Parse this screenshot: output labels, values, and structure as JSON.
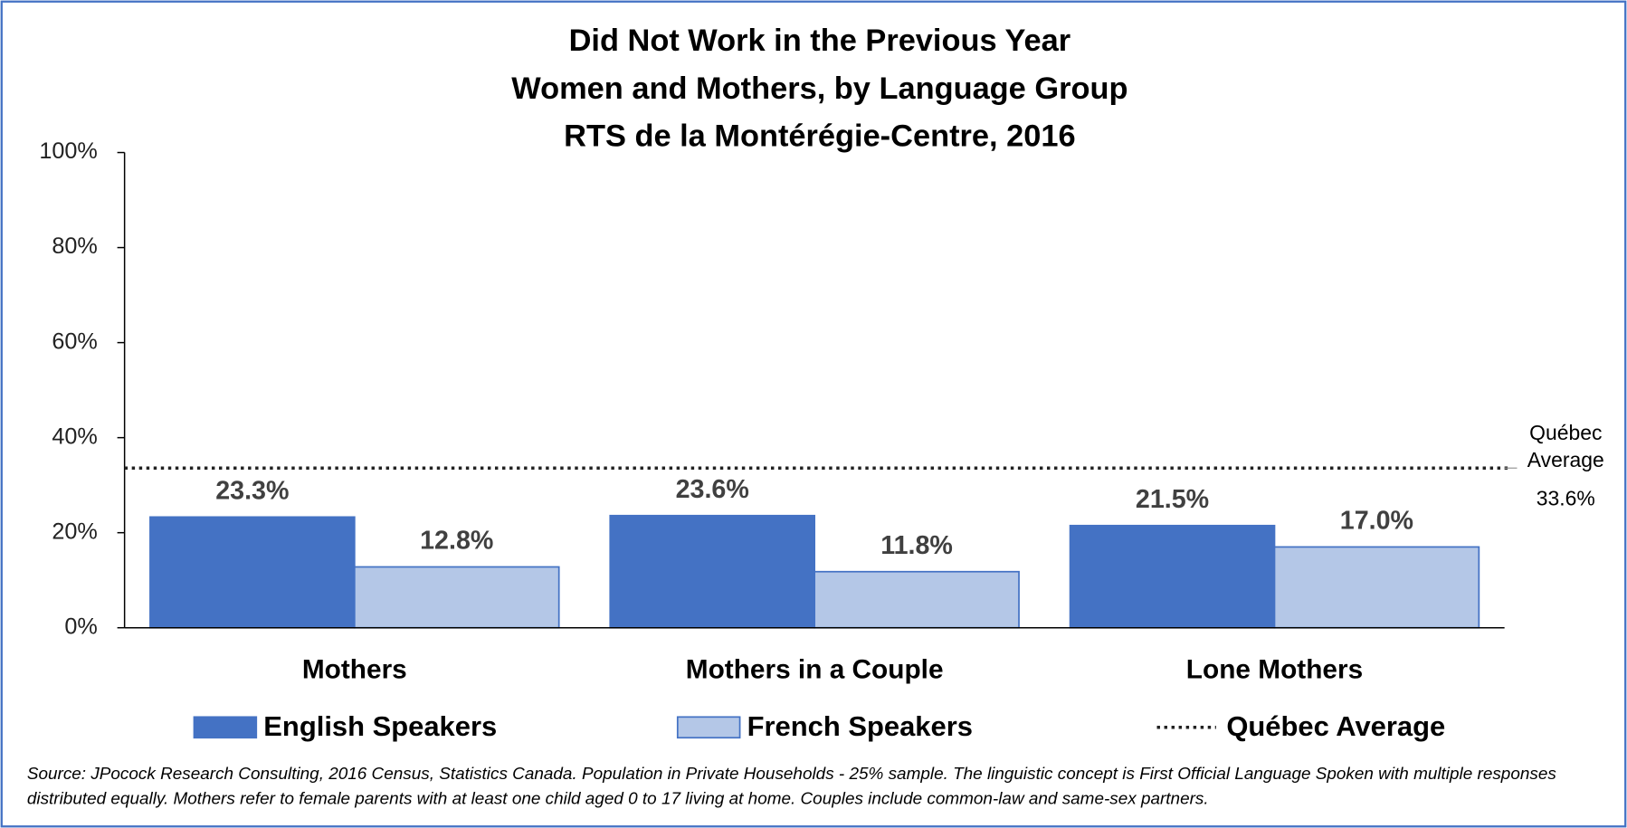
{
  "chart_data": {
    "type": "bar",
    "title": [
      "Did Not Work in the Previous Year",
      "Women and Mothers, by Language Group",
      "RTS de la Montérégie-Centre, 2016"
    ],
    "categories": [
      "Mothers",
      "Mothers in a Couple",
      "Lone Mothers"
    ],
    "series": [
      {
        "name": "English Speakers",
        "color": "#4472c4",
        "values": [
          23.3,
          23.6,
          21.5
        ],
        "value_labels": [
          "23.3%",
          "23.6%",
          "21.5%"
        ]
      },
      {
        "name": "French Speakers",
        "color": "#b4c7e7",
        "values": [
          12.8,
          11.8,
          17.0
        ],
        "value_labels": [
          "12.8%",
          "11.8%",
          "17.0%"
        ]
      }
    ],
    "reference_line": {
      "name": "Québec Average",
      "value": 33.6,
      "value_label": "33.6%"
    },
    "ylim": [
      0,
      100
    ],
    "yticks": [
      {
        "value": 0,
        "label": "0%"
      },
      {
        "value": 20,
        "label": "20%"
      },
      {
        "value": 40,
        "label": "40%"
      },
      {
        "value": 60,
        "label": "60%"
      },
      {
        "value": 80,
        "label": "80%"
      },
      {
        "value": 100,
        "label": "100%"
      }
    ],
    "grid": false,
    "legend": "bottom",
    "source": "Source: JPocock Research Consulting, 2016 Census, Statistics Canada. Population in Private Households - 25% sample. The linguistic concept is First Official Language Spoken with multiple responses distributed equally. Mothers refer to female parents with at least one child aged 0 to 17 living at home. Couples include common-law and same-sex partners."
  }
}
